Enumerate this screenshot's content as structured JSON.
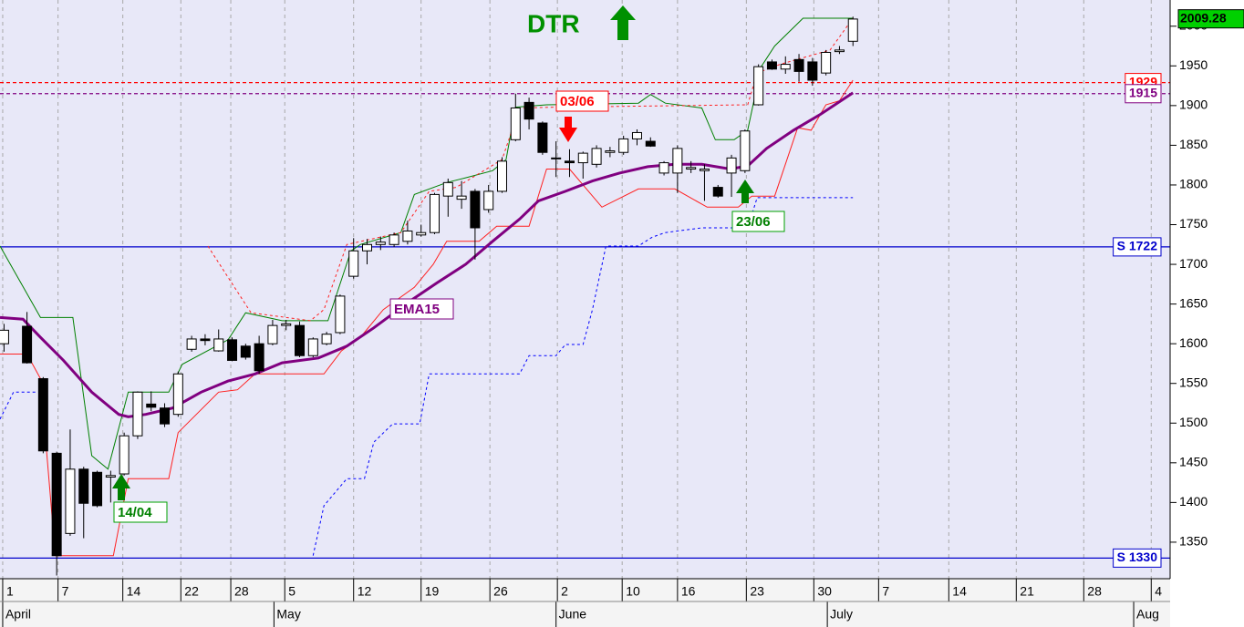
{
  "chart_data": {
    "type": "candlestick",
    "title": "DTR",
    "x": [
      0.1,
      1.8,
      3,
      4,
      5,
      6,
      7,
      8,
      9,
      10,
      11,
      12,
      13,
      14,
      15,
      16,
      17,
      18,
      19,
      20,
      21,
      22,
      23,
      24,
      25,
      26,
      27,
      28,
      29,
      30,
      31,
      32,
      33,
      34,
      35,
      36,
      37,
      38,
      39,
      40,
      41,
      42,
      43,
      44,
      45,
      46,
      47,
      48,
      49,
      50,
      51,
      52,
      53,
      54,
      55,
      56,
      57,
      58,
      59,
      60,
      61,
      62,
      63
    ],
    "open": [
      1600,
      1622,
      1556,
      1462,
      1361,
      1442,
      1438,
      1432,
      1436,
      1484,
      1524,
      1519,
      1511,
      1593,
      1606,
      1591,
      1605,
      1597,
      1600,
      1600,
      1623,
      1623,
      1585,
      1600,
      1614,
      1685,
      1717,
      1725,
      1725,
      1729,
      1737,
      1740,
      1786,
      1782,
      1792,
      1769,
      1792,
      1857,
      1904,
      1878,
      1834,
      1830,
      1828,
      1826,
      1841,
      1841,
      1858,
      1855,
      1815,
      1815,
      1820,
      1818,
      1797,
      1815,
      1818,
      1901,
      1955,
      1946,
      1958,
      1955,
      1941,
      1968,
      1981
    ],
    "high": [
      1625,
      1640,
      1558,
      1464,
      1492,
      1445,
      1440,
      1440,
      1488,
      1540,
      1540,
      1525,
      1565,
      1610,
      1612,
      1618,
      1608,
      1600,
      1610,
      1630,
      1630,
      1628,
      1608,
      1615,
      1662,
      1733,
      1732,
      1735,
      1740,
      1755,
      1750,
      1790,
      1808,
      1805,
      1795,
      1800,
      1835,
      1915,
      1910,
      1880,
      1855,
      1845,
      1842,
      1850,
      1848,
      1862,
      1870,
      1860,
      1830,
      1850,
      1830,
      1826,
      1800,
      1838,
      1870,
      1952,
      1958,
      1962,
      1965,
      1960,
      1970,
      1975,
      2012
    ],
    "low": [
      1590,
      1575,
      1462,
      1308,
      1358,
      1355,
      1394,
      1400,
      1434,
      1480,
      1515,
      1495,
      1508,
      1590,
      1598,
      1590,
      1578,
      1580,
      1562,
      1598,
      1617,
      1583,
      1583,
      1598,
      1612,
      1682,
      1700,
      1718,
      1722,
      1725,
      1735,
      1738,
      1760,
      1770,
      1706,
      1765,
      1790,
      1855,
      1870,
      1838,
      1810,
      1810,
      1808,
      1822,
      1835,
      1838,
      1850,
      1848,
      1812,
      1790,
      1815,
      1780,
      1784,
      1785,
      1815,
      1900,
      1945,
      1940,
      1930,
      1925,
      1938,
      1965,
      1975
    ],
    "close": [
      1617,
      1576,
      1465,
      1333,
      1442,
      1399,
      1396,
      1434,
      1484,
      1539,
      1520,
      1499,
      1562,
      1606,
      1604,
      1606,
      1579,
      1583,
      1566,
      1623,
      1625,
      1585,
      1606,
      1612,
      1660,
      1717,
      1725,
      1728,
      1737,
      1742,
      1740,
      1788,
      1803,
      1786,
      1746,
      1792,
      1830,
      1897,
      1883,
      1841,
      1833,
      1828,
      1840,
      1846,
      1843,
      1858,
      1866,
      1849,
      1828,
      1846,
      1822,
      1820,
      1786,
      1834,
      1868,
      1949,
      1946,
      1952,
      1943,
      1932,
      1967,
      1970,
      2009
    ],
    "lines": [
      {
        "color": "#008000",
        "width": 1,
        "dashed": false,
        "x": [
          -0.2,
          2.8,
          5.2,
          6.6,
          7.8,
          9.3,
          12.3,
          13.3,
          16.7,
          18.0,
          20.7,
          23.4,
          24.1,
          25.8,
          26.5,
          29.5,
          30.5,
          32.9,
          34.3,
          36.3,
          37.3,
          38.0,
          40.3,
          47.1,
          48.0,
          49.1,
          51.8,
          52.8,
          54.2,
          55.2,
          56.2,
          57.2,
          59.3,
          63.0
        ],
        "values": [
          1723,
          1633,
          1633,
          1459,
          1442,
          1539,
          1539,
          1574,
          1605,
          1639,
          1629,
          1629,
          1629,
          1717,
          1725,
          1740,
          1788,
          1803,
          1809,
          1818,
          1832,
          1898,
          1901,
          1903,
          1914,
          1903,
          1897,
          1857,
          1857,
          1869,
          1949,
          1975,
          2010,
          2010
        ]
      },
      {
        "color": "#ff2020",
        "width": 1,
        "dashed": false,
        "x": [
          -0.2,
          1.8,
          2.8,
          3.9,
          8.2,
          9.3,
          12.3,
          13.0,
          16.0,
          17.4,
          18.7,
          20.1,
          23.8,
          25.1,
          26.5,
          28.2,
          30.5,
          31.9,
          32.9,
          35.3,
          36.6,
          39.0,
          40.3,
          42.0,
          44.4,
          47.1,
          49.8,
          52.2,
          54.5,
          55.5,
          57.2,
          58.9,
          59.9,
          61.0,
          62.0,
          63.0
        ],
        "values": [
          1587,
          1587,
          1556,
          1333,
          1333,
          1430,
          1430,
          1488,
          1539,
          1542,
          1562,
          1562,
          1562,
          1591,
          1608,
          1643,
          1671,
          1700,
          1729,
          1729,
          1748,
          1748,
          1820,
          1820,
          1772,
          1795,
          1795,
          1772,
          1772,
          1786,
          1786,
          1872,
          1869,
          1901,
          1906,
          1932
        ]
      },
      {
        "color": "#ff2020",
        "width": 1,
        "dashed": true,
        "x": [
          15.2,
          18.4,
          22.8,
          23.8,
          25.5,
          29.5,
          31.6,
          33.6,
          37.0,
          38.3,
          41.0,
          55.2,
          55.9,
          57.6,
          61.3,
          63.0
        ],
        "values": [
          1723,
          1639,
          1629,
          1643,
          1725,
          1740,
          1792,
          1797,
          1832,
          1897,
          1898,
          1901,
          1941,
          1952,
          1970,
          2010
        ]
      },
      {
        "color": "#0000ff",
        "width": 1,
        "dashed": true,
        "x": [
          -0.2,
          0.8,
          2.5,
          null,
          23.0,
          23.8,
          25.5,
          26.8,
          27.5,
          28.9,
          30.9,
          31.6,
          38.3,
          39.0,
          41.0,
          41.7,
          43.0,
          43.7,
          44.7,
          47.1,
          48.1,
          49.1,
          51.8,
          55.2,
          55.9,
          63.0
        ],
        "values": [
          1505,
          1539,
          1539,
          null,
          1333,
          1396,
          1430,
          1430,
          1476,
          1499,
          1499,
          1562,
          1562,
          1585,
          1585,
          1599,
          1599,
          1643,
          1723,
          1723,
          1734,
          1740,
          1746,
          1746,
          1784,
          1784
        ]
      },
      {
        "color": "#800080",
        "width": 3,
        "dashed": false,
        "x": [
          -0.2,
          1.5,
          2.8,
          4.5,
          6.6,
          8.6,
          9.3,
          10.6,
          12.6,
          14.7,
          16.7,
          18.7,
          20.7,
          23.4,
          25.5,
          27.5,
          30.2,
          32.2,
          34.3,
          36.3,
          38.3,
          39.7,
          41.7,
          43.7,
          45.7,
          47.8,
          49.8,
          51.8,
          53.9,
          55.2,
          56.6,
          58.6,
          60.6,
          63.0
        ],
        "values": [
          1633,
          1631,
          1608,
          1579,
          1539,
          1511,
          1508,
          1511,
          1519,
          1539,
          1553,
          1562,
          1576,
          1582,
          1597,
          1620,
          1654,
          1677,
          1700,
          1729,
          1757,
          1780,
          1792,
          1805,
          1815,
          1823,
          1826,
          1826,
          1820,
          1824,
          1846,
          1869,
          1889,
          1916
        ]
      }
    ],
    "levels": [
      {
        "value": 1929,
        "color": "#ff0000",
        "dashed": true
      },
      {
        "value": 1915,
        "color": "#800080",
        "dashed": true
      },
      {
        "value": 1722,
        "label": "S 1722",
        "color": "#0000cc",
        "dashed": false
      },
      {
        "value": 1330,
        "label": "S 1330",
        "color": "#0000cc",
        "dashed": false
      }
    ],
    "last_value": 2009.28,
    "annotations": [
      "03/06",
      "14/04",
      "23/06",
      "EMA15"
    ],
    "xlim": [
      -0.2,
      86.5
    ],
    "ylim": [
      1304,
      2033
    ],
    "yticks": [
      1350,
      1400,
      1450,
      1500,
      1550,
      1600,
      1650,
      1700,
      1750,
      1800,
      1850,
      1900,
      1950,
      2000
    ],
    "xticks": [
      {
        "value": 0,
        "label": "1"
      },
      {
        "value": 4.1,
        "label": "7"
      },
      {
        "value": 8.9,
        "label": "14"
      },
      {
        "value": 13.2,
        "label": "22"
      },
      {
        "value": 16.9,
        "label": "28"
      },
      {
        "value": 20.9,
        "label": "5"
      },
      {
        "value": 26.0,
        "label": "12"
      },
      {
        "value": 31.0,
        "label": "19"
      },
      {
        "value": 36.1,
        "label": "26"
      },
      {
        "value": 41.1,
        "label": "2"
      },
      {
        "value": 45.9,
        "label": "10"
      },
      {
        "value": 50.0,
        "label": "16"
      },
      {
        "value": 55.1,
        "label": "23"
      },
      {
        "value": 60.1,
        "label": "30"
      },
      {
        "value": 64.9,
        "label": "7"
      },
      {
        "value": 70.1,
        "label": "14"
      },
      {
        "value": 75.1,
        "label": "21"
      },
      {
        "value": 80.1,
        "label": "28"
      },
      {
        "value": 85.1,
        "label": "4"
      }
    ],
    "month_ticks": [
      {
        "value": 0,
        "label": "April"
      },
      {
        "value": 20.1,
        "label": "May"
      },
      {
        "value": 41.0,
        "label": "June"
      },
      {
        "value": 61.1,
        "label": "July"
      },
      {
        "value": 83.8,
        "label": "Aug"
      }
    ],
    "grid": true
  }
}
